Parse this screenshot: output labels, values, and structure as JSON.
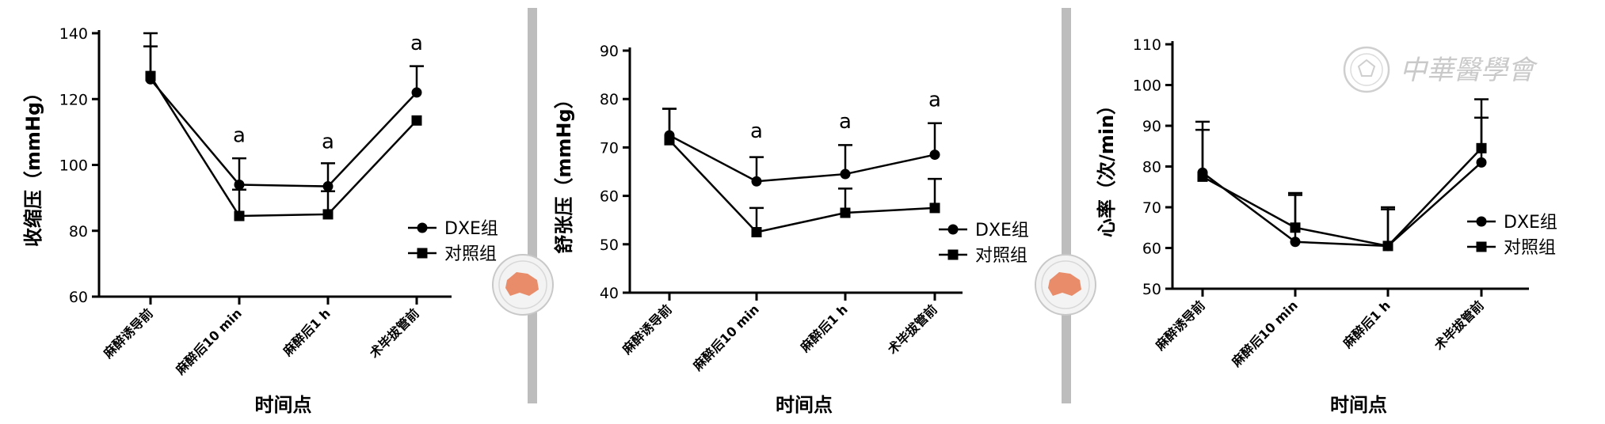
{
  "chart_data": [
    {
      "type": "line",
      "ylabel": "收缩压（mmHg）",
      "xlabel": "时间点",
      "categories": [
        "麻醉诱导前",
        "麻醉后10 min",
        "麻醉后1 h",
        "术毕拔管前"
      ],
      "ylim": [
        60,
        140
      ],
      "yticks": [
        60,
        80,
        100,
        120,
        140
      ],
      "legend_position": "right",
      "series": [
        {
          "name": "DXE组",
          "marker": "circle",
          "values": [
            126,
            94,
            93.5,
            122
          ],
          "error": [
            14,
            8,
            7,
            8
          ]
        },
        {
          "name": "对照组",
          "marker": "square",
          "values": [
            127,
            84.5,
            85,
            113.5
          ],
          "error": [
            9,
            8,
            7,
            0
          ]
        }
      ],
      "annotations": [
        {
          "category_index": 1,
          "text": "a",
          "y": 107
        },
        {
          "category_index": 2,
          "text": "a",
          "y": 105
        },
        {
          "category_index": 3,
          "text": "a",
          "y": 135
        }
      ]
    },
    {
      "type": "line",
      "ylabel": "舒张压（mmHg）",
      "xlabel": "时间点",
      "categories": [
        "麻醉诱导前",
        "麻醉后10 min",
        "麻醉后1 h",
        "术毕拔管前"
      ],
      "ylim": [
        40,
        90
      ],
      "yticks": [
        40,
        50,
        60,
        70,
        80,
        90
      ],
      "legend_position": "right",
      "series": [
        {
          "name": "DXE组",
          "marker": "circle",
          "values": [
            72.5,
            63,
            64.5,
            68.5
          ],
          "error": [
            5.5,
            5,
            6,
            6.5
          ]
        },
        {
          "name": "对照组",
          "marker": "square",
          "values": [
            71.5,
            52.5,
            56.5,
            57.5
          ],
          "error": [
            6.5,
            5,
            5,
            6
          ]
        }
      ],
      "annotations": [
        {
          "category_index": 1,
          "text": "a",
          "y": 72
        },
        {
          "category_index": 2,
          "text": "a",
          "y": 74
        },
        {
          "category_index": 3,
          "text": "a",
          "y": 78.5
        }
      ]
    },
    {
      "type": "line",
      "ylabel": "心率（次/min）",
      "xlabel": "时间点",
      "categories": [
        "麻醉诱导前",
        "麻醉后10 min",
        "麻醉后1 h",
        "术毕拔管前"
      ],
      "ylim": [
        50,
        110
      ],
      "yticks": [
        50,
        60,
        70,
        80,
        90,
        100,
        110
      ],
      "legend_position": "right",
      "series": [
        {
          "name": "DXE组",
          "marker": "circle",
          "values": [
            78.5,
            61.5,
            60.5,
            81
          ],
          "error": [
            12.5,
            12,
            9.5,
            11
          ]
        },
        {
          "name": "对照组",
          "marker": "square",
          "values": [
            77.5,
            65,
            60.5,
            84.5
          ],
          "error": [
            11.5,
            8,
            9,
            12
          ]
        }
      ],
      "annotations": []
    }
  ],
  "watermark": {
    "text": "中華醫學會",
    "seal_color": "#e98c6a",
    "logo_icon": "cma-seal-icon"
  }
}
